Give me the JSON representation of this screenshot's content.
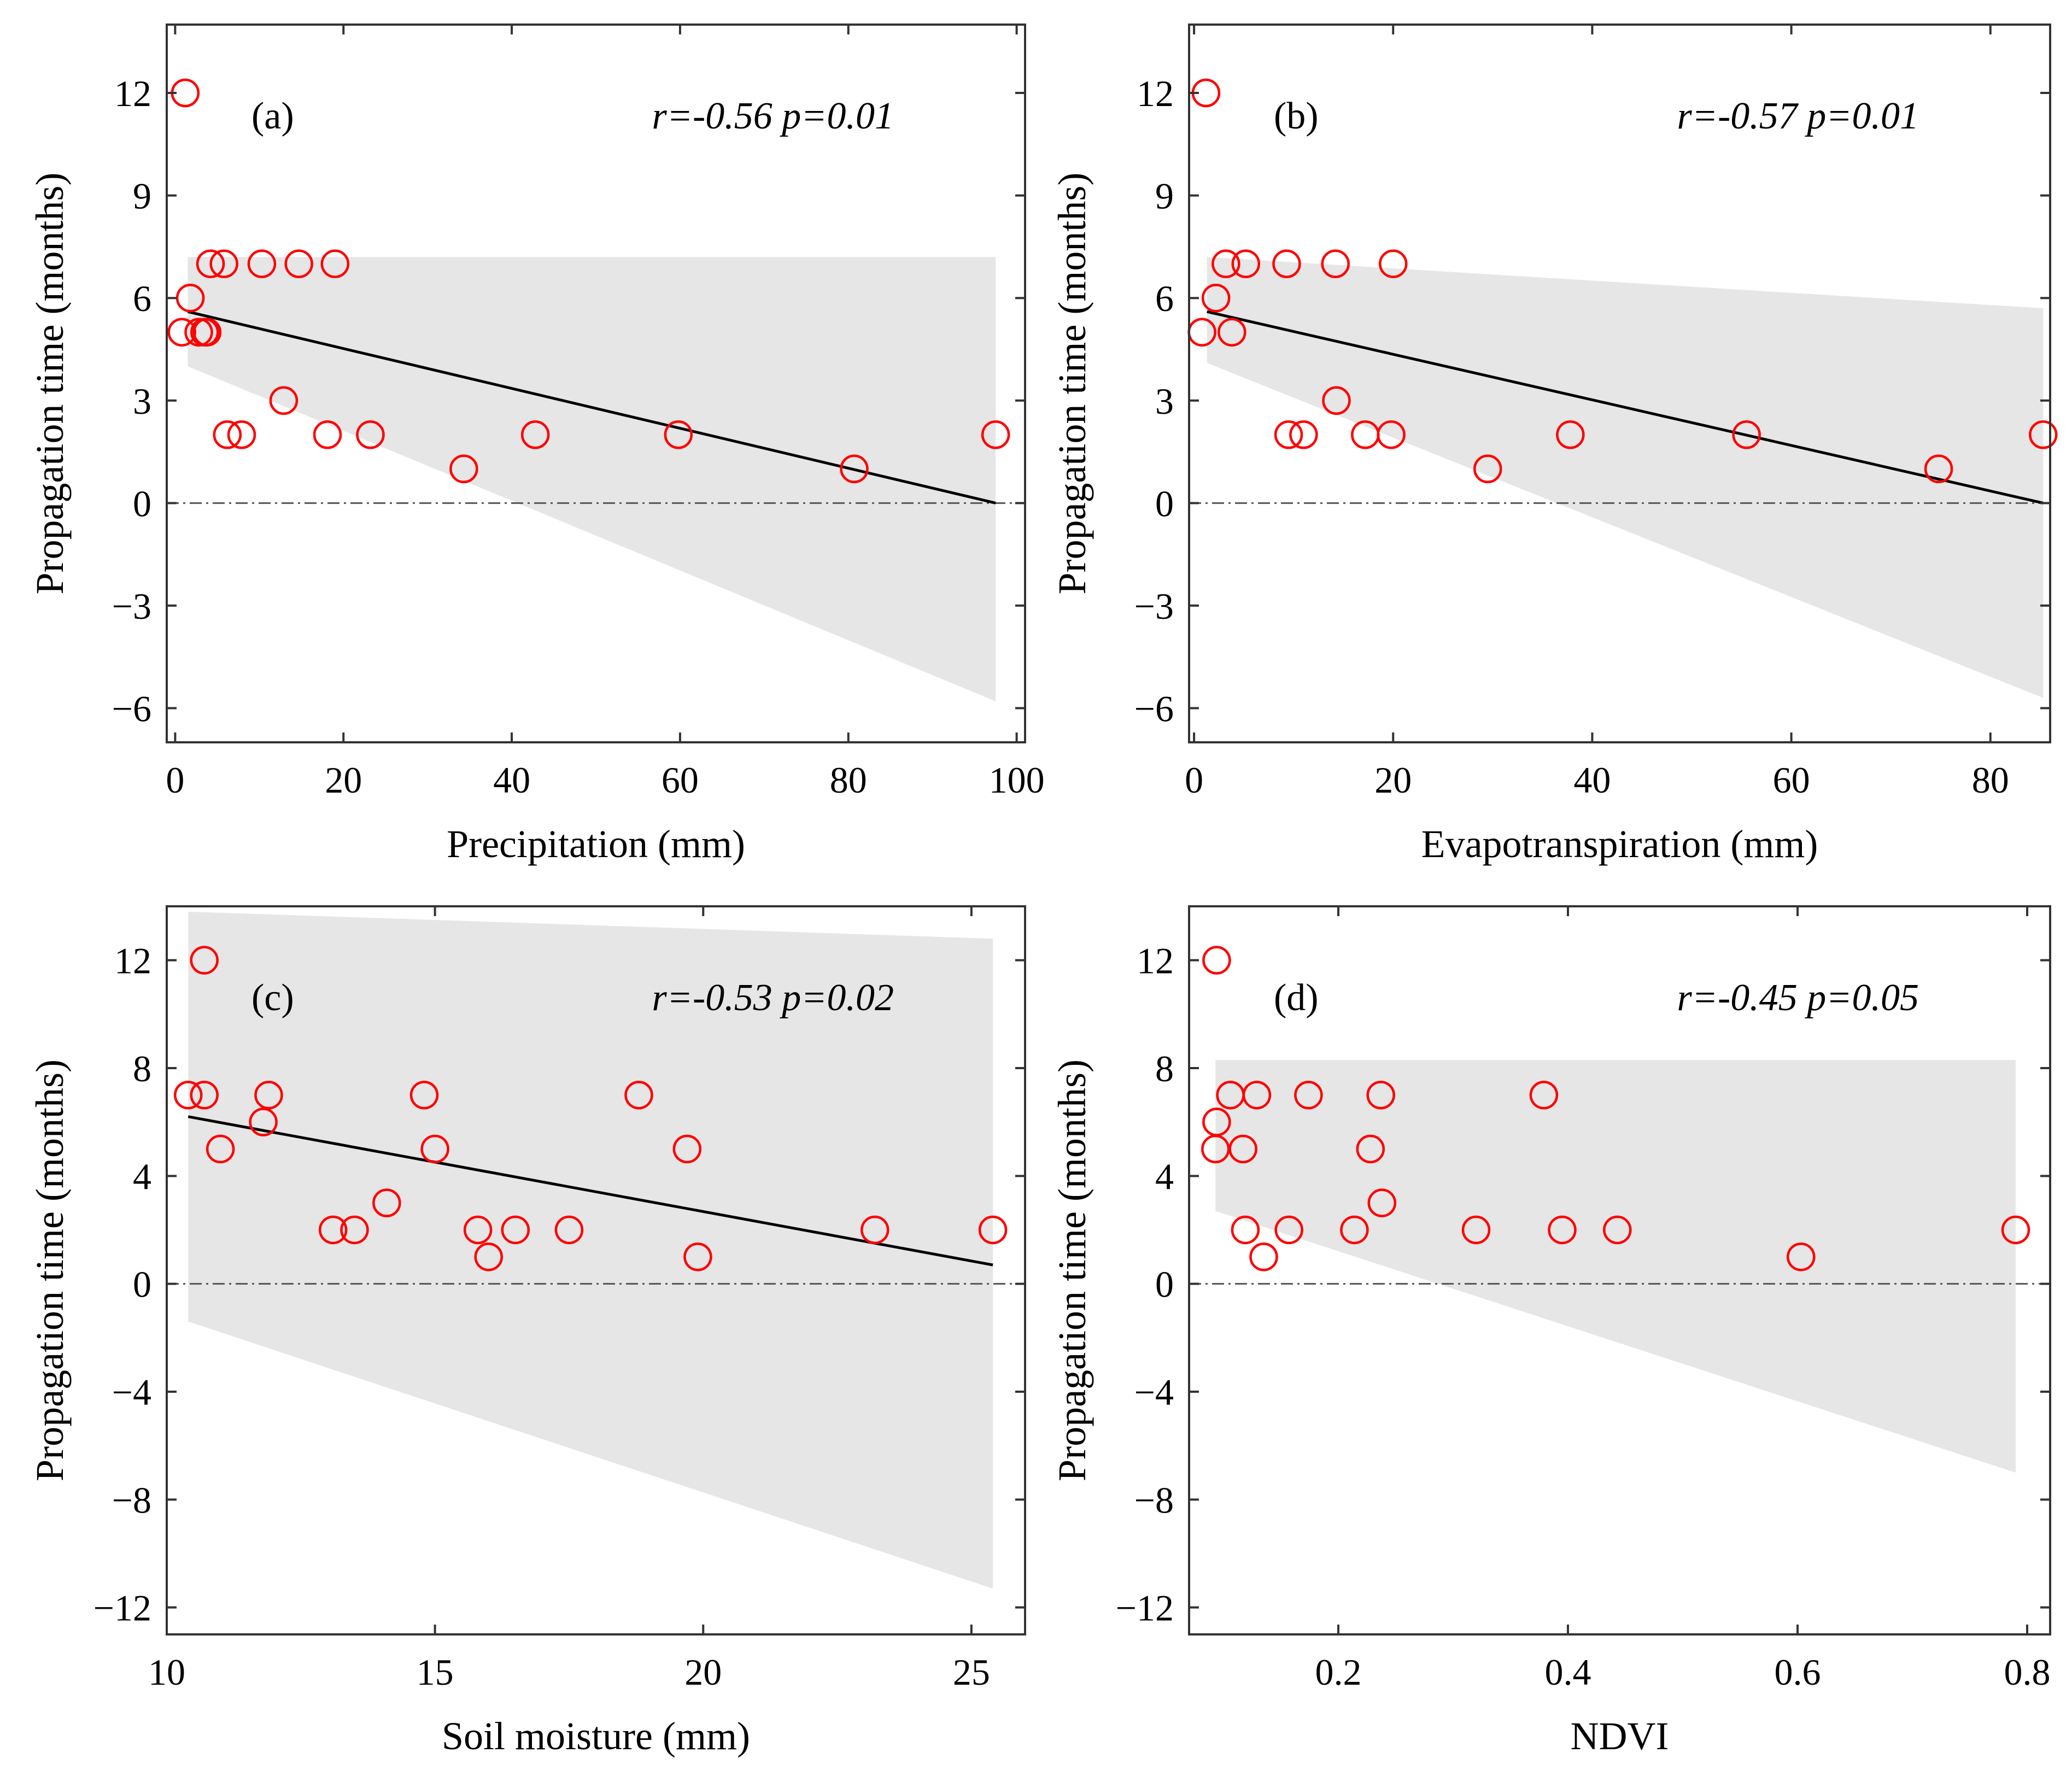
{
  "colors": {
    "marker": "#ff0000",
    "band": "#e6e6e6",
    "fit_line": "#000000",
    "zero_line": "#555555",
    "axes": "#333333"
  },
  "chart_data": [
    {
      "id": "a",
      "type": "scatter",
      "panel_label": "(a)",
      "stat_text": "r=-0.56 p=0.01",
      "xlabel": "Precipitation (mm)",
      "ylabel": "Propagation time (months)",
      "xlim": [
        -1,
        101
      ],
      "ylim": [
        -7,
        14
      ],
      "xticks": [
        0,
        20,
        40,
        60,
        80,
        100
      ],
      "yticks": [
        -6,
        -3,
        0,
        3,
        6,
        9,
        12
      ],
      "grid": false,
      "x": [
        1.2,
        0.8,
        1.8,
        2.8,
        3.5,
        3.8,
        4.2,
        5.8,
        6.2,
        7.9,
        10.3,
        12.9,
        14.7,
        18.1,
        19.0,
        23.2,
        34.3,
        42.8,
        59.8,
        80.7,
        97.5
      ],
      "y": [
        12,
        5,
        6,
        5,
        5,
        5,
        7,
        7,
        2,
        2,
        7,
        3,
        7,
        2,
        7,
        2,
        1,
        2,
        2,
        1,
        2
      ],
      "fit_line": {
        "x": [
          1.5,
          97.5
        ],
        "y": [
          5.6,
          0.0
        ]
      },
      "confidence_band": {
        "x": [
          1.5,
          97.5
        ],
        "upper": [
          7.2,
          7.2
        ],
        "lower": [
          4.0,
          -5.8
        ]
      }
    },
    {
      "id": "b",
      "type": "scatter",
      "panel_label": "(b)",
      "stat_text": "r=-0.57 p=0.01",
      "xlabel": "Evapotranspiration (mm)",
      "ylabel": "Propagation time (months)",
      "xlim": [
        -0.5,
        86
      ],
      "ylim": [
        -7,
        14
      ],
      "xticks": [
        0,
        20,
        40,
        60,
        80
      ],
      "yticks": [
        -6,
        -3,
        0,
        3,
        6,
        9,
        12
      ],
      "grid": false,
      "x": [
        1.2,
        0.8,
        2.2,
        3.2,
        3.8,
        5.2,
        9.3,
        9.5,
        11.0,
        14.2,
        14.3,
        17.2,
        19.8,
        20.0,
        29.5,
        37.8,
        55.5,
        74.8,
        85.3
      ],
      "y": [
        12,
        5,
        6,
        7,
        5,
        7,
        7,
        2,
        2,
        7,
        3,
        2,
        2,
        7,
        1,
        2,
        2,
        1,
        2
      ],
      "fit_line": {
        "x": [
          1.3,
          85.3
        ],
        "y": [
          5.6,
          0.0
        ]
      },
      "confidence_band": {
        "x": [
          1.3,
          85.3
        ],
        "upper": [
          7.2,
          5.7
        ],
        "lower": [
          4.1,
          -5.7
        ]
      }
    },
    {
      "id": "c",
      "type": "scatter",
      "panel_label": "(c)",
      "stat_text": "r=-0.53 p=0.02",
      "xlabel": "Soil moisture (mm)",
      "ylabel": "Propagation time (months)",
      "xlim": [
        10,
        26
      ],
      "ylim": [
        -13,
        14
      ],
      "xticks": [
        10,
        15,
        20,
        25
      ],
      "yticks": [
        -12,
        -8,
        -4,
        0,
        4,
        8,
        12
      ],
      "grid": false,
      "x": [
        10.7,
        10.4,
        10.7,
        11.0,
        11.8,
        11.9,
        13.1,
        13.5,
        14.1,
        14.8,
        15.0,
        15.8,
        16.0,
        16.5,
        17.5,
        18.8,
        19.7,
        19.9,
        23.2,
        25.4
      ],
      "y": [
        12,
        7,
        7,
        5,
        6,
        7,
        2,
        2,
        3,
        7,
        5,
        2,
        1,
        2,
        2,
        7,
        5,
        1,
        2,
        2
      ],
      "fit_line": {
        "x": [
          10.4,
          25.4
        ],
        "y": [
          6.2,
          0.7
        ]
      },
      "confidence_band": {
        "x": [
          10.4,
          25.4
        ],
        "upper": [
          13.8,
          12.8
        ],
        "lower": [
          -1.4,
          -11.3
        ]
      }
    },
    {
      "id": "d",
      "type": "scatter",
      "panel_label": "(d)",
      "stat_text": "r=-0.45 p=0.05",
      "xlabel": "NDVI",
      "ylabel": "Propagation time (months)",
      "xlim": [
        0.07,
        0.82
      ],
      "ylim": [
        -13,
        14
      ],
      "xticks": [
        0.2,
        0.4,
        0.6,
        0.8
      ],
      "yticks": [
        -12,
        -8,
        -4,
        0,
        4,
        8,
        12
      ],
      "grid": false,
      "x": [
        0.094,
        0.094,
        0.093,
        0.106,
        0.117,
        0.119,
        0.129,
        0.135,
        0.157,
        0.174,
        0.214,
        0.228,
        0.237,
        0.238,
        0.32,
        0.379,
        0.395,
        0.443,
        0.603,
        0.79
      ],
      "y": [
        12,
        6,
        5,
        7,
        5,
        2,
        7,
        1,
        2,
        7,
        2,
        5,
        7,
        3,
        2,
        7,
        2,
        2,
        1,
        2
      ],
      "confidence_band": {
        "x": [
          0.093,
          0.79
        ],
        "upper": [
          8.3,
          8.3
        ],
        "lower": [
          2.7,
          -7.0
        ]
      }
    }
  ]
}
